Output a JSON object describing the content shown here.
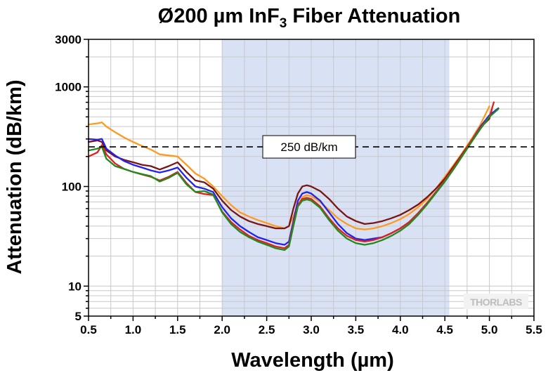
{
  "chart_data": {
    "type": "line",
    "title_main": "Ø200 µm InF",
    "title_subscript": "3",
    "title_rest": " Fiber Attenuation",
    "xlabel": "Wavelength (µm)",
    "ylabel": "Attenuation (dB/km)",
    "xscale": "linear",
    "yscale": "log",
    "xlim": [
      0.5,
      5.5
    ],
    "ylim": [
      5,
      3000
    ],
    "xticks": [
      "0.5",
      "1.0",
      "1.5",
      "2.0",
      "2.5",
      "3.0",
      "3.5",
      "4.0",
      "4.5",
      "5.0",
      "5.5"
    ],
    "yticks": [
      {
        "value": 5,
        "label": "5"
      },
      {
        "value": 10,
        "label": "10"
      },
      {
        "value": 100,
        "label": "100"
      },
      {
        "value": 1000,
        "label": "1000"
      },
      {
        "value": 3000,
        "label": "3000"
      }
    ],
    "grid": true,
    "legend": "none",
    "shaded_region": {
      "x": [
        2.0,
        4.55
      ],
      "color": "#d9e2f5"
    },
    "reference_line": {
      "y": 250,
      "label": "250 dB/km"
    },
    "brand": "THORLABS",
    "series": [
      {
        "color": "#ff9a1f",
        "x": [
          0.5,
          0.6,
          0.65,
          0.7,
          0.8,
          0.9,
          1.0,
          1.1,
          1.2,
          1.3,
          1.4,
          1.5,
          1.6,
          1.7,
          1.8,
          1.9,
          2.0,
          2.1,
          2.2,
          2.3,
          2.4,
          2.5,
          2.6,
          2.7,
          2.75,
          2.8,
          2.85,
          2.9,
          2.95,
          3.0,
          3.1,
          3.2,
          3.3,
          3.4,
          3.5,
          3.6,
          3.7,
          3.8,
          3.9,
          4.0,
          4.1,
          4.2,
          4.3,
          4.4,
          4.5,
          4.6,
          4.7,
          4.8,
          4.9,
          5.0
        ],
        "y": [
          420,
          430,
          440,
          400,
          350,
          310,
          280,
          255,
          235,
          210,
          205,
          200,
          165,
          135,
          120,
          100,
          80,
          65,
          55,
          50,
          46,
          43,
          40,
          38,
          40,
          50,
          65,
          78,
          82,
          80,
          70,
          58,
          48,
          42,
          38,
          37,
          38,
          40,
          43,
          47,
          53,
          62,
          75,
          95,
          125,
          165,
          220,
          300,
          420,
          640
        ]
      },
      {
        "color": "#7a1515",
        "x": [
          0.5,
          0.6,
          0.65,
          0.7,
          0.8,
          0.9,
          1.0,
          1.1,
          1.2,
          1.3,
          1.4,
          1.5,
          1.6,
          1.7,
          1.8,
          1.9,
          2.0,
          2.1,
          2.2,
          2.3,
          2.4,
          2.5,
          2.6,
          2.7,
          2.75,
          2.8,
          2.85,
          2.9,
          2.95,
          3.0,
          3.1,
          3.2,
          3.3,
          3.4,
          3.5,
          3.6,
          3.7,
          3.8,
          3.9,
          4.0,
          4.1,
          4.2,
          4.3,
          4.4,
          4.5,
          4.6,
          4.7,
          4.8,
          4.9,
          5.0,
          5.03
        ],
        "y": [
          280,
          290,
          280,
          230,
          200,
          185,
          175,
          165,
          160,
          148,
          160,
          175,
          140,
          115,
          110,
          95,
          72,
          58,
          50,
          45,
          42,
          40,
          38,
          38,
          40,
          60,
          85,
          100,
          103,
          100,
          90,
          75,
          60,
          50,
          45,
          42,
          43,
          45,
          48,
          52,
          58,
          66,
          78,
          95,
          120,
          160,
          215,
          290,
          390,
          480,
          610
        ]
      },
      {
        "color": "#2222ee",
        "x": [
          0.5,
          0.6,
          0.65,
          0.7,
          0.8,
          0.9,
          1.0,
          1.1,
          1.2,
          1.3,
          1.4,
          1.5,
          1.6,
          1.7,
          1.8,
          1.9,
          2.0,
          2.1,
          2.2,
          2.3,
          2.4,
          2.5,
          2.6,
          2.7,
          2.75,
          2.8,
          2.85,
          2.9,
          2.95,
          3.0,
          3.1,
          3.2,
          3.3,
          3.4,
          3.5,
          3.6,
          3.7,
          3.8,
          3.9,
          4.0,
          4.1,
          4.2,
          4.3,
          4.4,
          4.5,
          4.6,
          4.7,
          4.8,
          4.9,
          5.0,
          5.1
        ],
        "y": [
          300,
          295,
          300,
          240,
          205,
          180,
          165,
          155,
          145,
          138,
          145,
          155,
          122,
          100,
          95,
          88,
          62,
          48,
          40,
          35,
          31,
          29,
          27,
          26,
          28,
          45,
          72,
          85,
          88,
          85,
          72,
          55,
          42,
          34,
          30,
          29,
          30,
          31,
          34,
          38,
          44,
          54,
          68,
          88,
          115,
          155,
          210,
          290,
          400,
          520,
          610
        ]
      },
      {
        "color": "#e02020",
        "x": [
          0.5,
          0.6,
          0.65,
          0.7,
          0.8,
          0.9,
          1.0,
          1.1,
          1.2,
          1.3,
          1.4,
          1.5,
          1.6,
          1.7,
          1.8,
          1.9,
          2.0,
          2.1,
          2.2,
          2.3,
          2.4,
          2.5,
          2.6,
          2.7,
          2.75,
          2.8,
          2.85,
          2.9,
          2.95,
          3.0,
          3.1,
          3.2,
          3.3,
          3.4,
          3.5,
          3.6,
          3.7,
          3.8,
          3.9,
          4.0,
          4.1,
          4.2,
          4.3,
          4.4,
          4.5,
          4.6,
          4.7,
          4.8,
          4.9,
          5.0,
          5.05
        ],
        "y": [
          200,
          220,
          260,
          210,
          170,
          150,
          140,
          132,
          125,
          115,
          125,
          140,
          108,
          88,
          84,
          82,
          56,
          44,
          37,
          32,
          29,
          27,
          25,
          24,
          26,
          42,
          65,
          75,
          77,
          75,
          63,
          48,
          38,
          32,
          29,
          28,
          29,
          31,
          34,
          38,
          44,
          54,
          68,
          88,
          115,
          155,
          210,
          290,
          390,
          500,
          700
        ]
      },
      {
        "color": "#1f8a1f",
        "x": [
          0.5,
          0.6,
          0.65,
          0.7,
          0.8,
          0.9,
          1.0,
          1.1,
          1.2,
          1.3,
          1.4,
          1.5,
          1.6,
          1.7,
          1.8,
          1.9,
          2.0,
          2.1,
          2.2,
          2.3,
          2.4,
          2.5,
          2.6,
          2.7,
          2.75,
          2.8,
          2.85,
          2.9,
          2.95,
          3.0,
          3.1,
          3.2,
          3.3,
          3.4,
          3.5,
          3.6,
          3.7,
          3.8,
          3.9,
          4.0,
          4.1,
          4.2,
          4.3,
          4.4,
          4.5,
          4.6,
          4.7,
          4.8,
          4.9,
          5.0,
          5.1
        ],
        "y": [
          230,
          240,
          250,
          190,
          160,
          150,
          140,
          133,
          127,
          112,
          122,
          137,
          105,
          88,
          90,
          83,
          55,
          42,
          35,
          31,
          28,
          26,
          24,
          23,
          25,
          40,
          63,
          72,
          74,
          72,
          61,
          46,
          36,
          30,
          27,
          26,
          27,
          29,
          32,
          36,
          42,
          52,
          66,
          86,
          112,
          150,
          205,
          280,
          380,
          500,
          600
        ]
      }
    ]
  }
}
